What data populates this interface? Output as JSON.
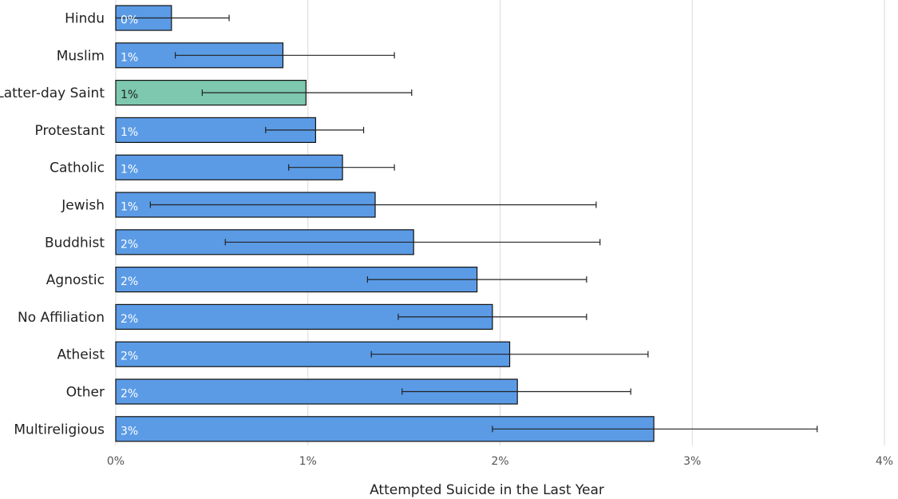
{
  "chart_data": {
    "type": "bar",
    "orientation": "horizontal",
    "title": "",
    "xlabel": "Attempted Suicide in the Last Year",
    "ylabel": "",
    "xlim": [
      0,
      4
    ],
    "x_ticks": [
      {
        "value": 0,
        "label": "0%"
      },
      {
        "value": 1,
        "label": "1%"
      },
      {
        "value": 2,
        "label": "2%"
      },
      {
        "value": 3,
        "label": "3%"
      },
      {
        "value": 4,
        "label": "4%"
      }
    ],
    "grid": "vertical",
    "legend": "none",
    "colors": {
      "default_bar": "#5b9be6",
      "highlight_bar": "#7dc8af",
      "bar_outline": "#111111",
      "gridline": "#d9d9d9",
      "error_bar": "#222222",
      "label_on_default": "#ffffff",
      "label_on_highlight": "#222222"
    },
    "bars": [
      {
        "category": "Hindu",
        "value": 0.29,
        "label": "0%",
        "err_low": 0.0,
        "err_high": 0.59,
        "highlight": false
      },
      {
        "category": "Muslim",
        "value": 0.87,
        "label": "1%",
        "err_low": 0.31,
        "err_high": 1.45,
        "highlight": false
      },
      {
        "category": "Latter-day Saint",
        "value": 0.99,
        "label": "1%",
        "err_low": 0.45,
        "err_high": 1.54,
        "highlight": true
      },
      {
        "category": "Protestant",
        "value": 1.04,
        "label": "1%",
        "err_low": 0.78,
        "err_high": 1.29,
        "highlight": false
      },
      {
        "category": "Catholic",
        "value": 1.18,
        "label": "1%",
        "err_low": 0.9,
        "err_high": 1.45,
        "highlight": false
      },
      {
        "category": "Jewish",
        "value": 1.35,
        "label": "1%",
        "err_low": 0.18,
        "err_high": 2.5,
        "highlight": false
      },
      {
        "category": "Buddhist",
        "value": 1.55,
        "label": "2%",
        "err_low": 0.57,
        "err_high": 2.52,
        "highlight": false
      },
      {
        "category": "Agnostic",
        "value": 1.88,
        "label": "2%",
        "err_low": 1.31,
        "err_high": 2.45,
        "highlight": false
      },
      {
        "category": "No Affiliation",
        "value": 1.96,
        "label": "2%",
        "err_low": 1.47,
        "err_high": 2.45,
        "highlight": false
      },
      {
        "category": "Atheist",
        "value": 2.05,
        "label": "2%",
        "err_low": 1.33,
        "err_high": 2.77,
        "highlight": false
      },
      {
        "category": "Other",
        "value": 2.09,
        "label": "2%",
        "err_low": 1.49,
        "err_high": 2.68,
        "highlight": false
      },
      {
        "category": "Multireligious",
        "value": 2.8,
        "label": "3%",
        "err_low": 1.96,
        "err_high": 3.65,
        "highlight": false
      }
    ]
  }
}
